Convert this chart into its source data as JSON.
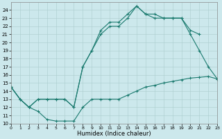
{
  "background_color": "#cce8ec",
  "grid_color": "#aacccc",
  "line_color": "#1a7a6e",
  "xlabel": "Humidex (Indice chaleur)",
  "xlim": [
    0,
    23
  ],
  "ylim": [
    10,
    25
  ],
  "xticks": [
    0,
    1,
    2,
    3,
    4,
    5,
    6,
    7,
    8,
    9,
    10,
    11,
    12,
    13,
    14,
    15,
    16,
    17,
    18,
    19,
    20,
    21,
    22,
    23
  ],
  "yticks": [
    10,
    11,
    12,
    13,
    14,
    15,
    16,
    17,
    18,
    19,
    20,
    21,
    22,
    23,
    24
  ],
  "curve1_x": [
    0,
    1,
    2,
    3,
    4,
    5,
    6,
    7,
    8,
    9,
    10,
    11,
    12,
    13,
    14,
    15,
    16,
    17,
    18,
    19,
    20,
    21,
    22,
    23
  ],
  "curve1_y": [
    14.5,
    13,
    12,
    11.5,
    10.5,
    10.3,
    10.3,
    10.3,
    12,
    13,
    13,
    13,
    13,
    13.5,
    14,
    14.5,
    14.7,
    15,
    15.2,
    15.4,
    15.6,
    15.7,
    15.8,
    15.5
  ],
  "curve2_x": [
    0,
    1,
    2,
    3,
    4,
    5,
    6,
    7,
    8,
    9,
    10,
    11,
    12,
    13,
    14,
    15,
    16,
    17,
    18,
    19,
    20,
    21,
    22,
    23
  ],
  "curve2_y": [
    14.5,
    13,
    12,
    13,
    13,
    13,
    13,
    12,
    17,
    19,
    21,
    22,
    22,
    23,
    24.5,
    23.5,
    23,
    23,
    23,
    23,
    21,
    19,
    17,
    15.5
  ],
  "curve3_x": [
    0,
    1,
    2,
    3,
    4,
    5,
    6,
    7,
    8,
    9,
    10,
    11,
    12,
    13,
    14,
    15,
    16,
    17,
    18,
    19,
    20,
    21,
    22,
    23
  ],
  "curve3_y": [
    14.5,
    13,
    12,
    13,
    13,
    13,
    13,
    12,
    17,
    19,
    21.5,
    22.5,
    22.5,
    23.5,
    24.5,
    23.5,
    23.5,
    23,
    23,
    23,
    21.5,
    21,
    null,
    null
  ]
}
